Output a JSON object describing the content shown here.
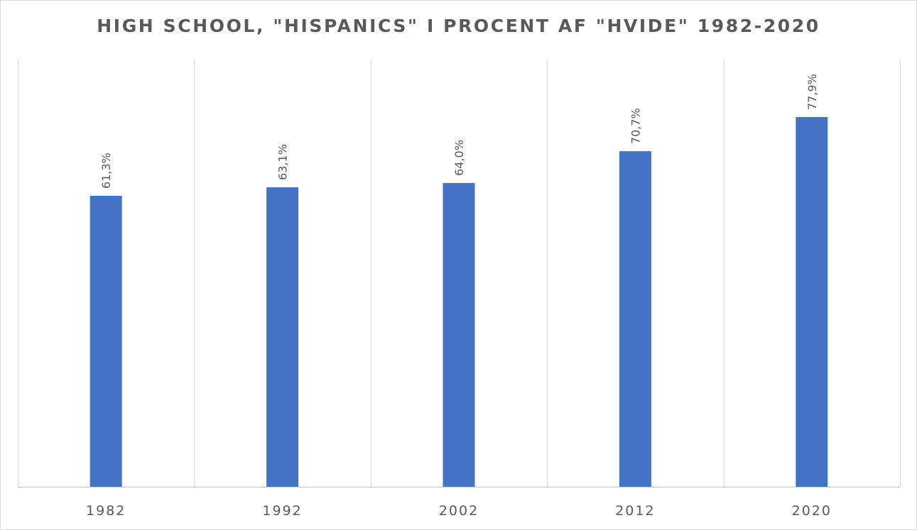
{
  "chart_data": {
    "type": "bar",
    "title": "HIGH SCHOOL, \"HISPANICS\" I PROCENT AF \"HVIDE\" 1982-2020",
    "categories": [
      "1982",
      "1992",
      "2002",
      "2012",
      "2020"
    ],
    "values": [
      61.3,
      63.1,
      64.0,
      70.7,
      77.9
    ],
    "data_labels": [
      "61,3%",
      "63,1%",
      "64,0%",
      "70,7%",
      "77,9%"
    ],
    "ylim": [
      0,
      90
    ],
    "grid": "vertical category separators",
    "legend": "none",
    "bar_color": "#4472c4"
  }
}
